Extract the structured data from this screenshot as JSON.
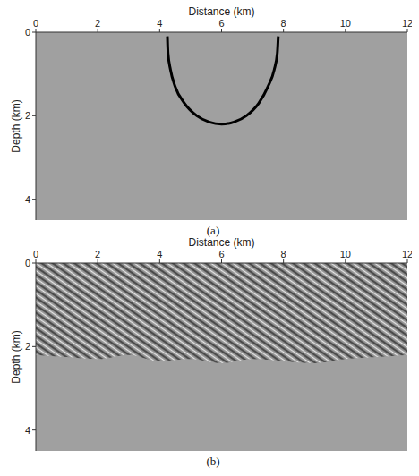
{
  "chart_data": [
    {
      "type": "line",
      "caption": "(a)",
      "x_label": "Distance (km)",
      "y_label": "Depth (km)",
      "xlim": [
        0,
        12
      ],
      "ylim": [
        0,
        4.5
      ],
      "xticks": [
        0,
        2,
        4,
        6,
        8,
        10,
        12
      ],
      "yticks": [
        0,
        2,
        4
      ],
      "grid": false,
      "x": [
        4.25,
        4.27,
        4.35,
        4.5,
        4.8,
        5.2,
        5.6,
        6,
        6.4,
        6.8,
        7.2,
        7.5,
        7.7,
        7.8,
        7.83
      ],
      "series": [
        {
          "color": "#000000",
          "values": [
            0.1,
            0.5,
            0.9,
            1.3,
            1.7,
            2.0,
            2.15,
            2.2,
            2.15,
            2.0,
            1.7,
            1.3,
            0.9,
            0.5,
            0.1
          ]
        }
      ]
    },
    {
      "type": "area",
      "caption": "(b)",
      "x_label": "Distance (km)",
      "y_label": "Depth (km)",
      "xlim": [
        0,
        12
      ],
      "ylim": [
        0,
        4.5
      ],
      "xticks": [
        0,
        2,
        4,
        6,
        8,
        10,
        12
      ],
      "yticks": [
        0,
        2,
        4
      ],
      "grid": false,
      "x": [
        0,
        1,
        2,
        3,
        4,
        5,
        6,
        7,
        8,
        9,
        10,
        11,
        12
      ],
      "series": [
        {
          "color": "#8c8c8c",
          "values": [
            2.2,
            2.25,
            2.3,
            2.2,
            2.35,
            2.3,
            2.4,
            2.3,
            2.35,
            2.4,
            2.3,
            2.25,
            2.2
          ]
        }
      ]
    }
  ]
}
